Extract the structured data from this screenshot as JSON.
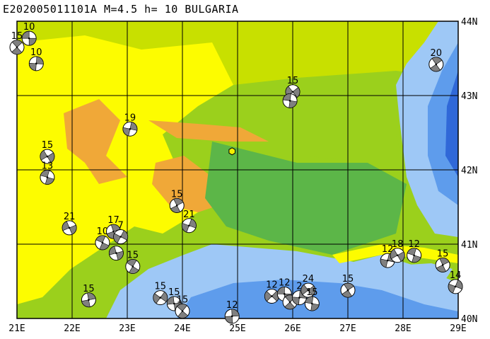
{
  "title": "E202005011101A  M=4.5  h= 10  BULGARIA",
  "extent": {
    "lon_min": 21,
    "lon_max": 29,
    "lat_min": 40,
    "lat_max": 44
  },
  "lon_labels": [
    "21E",
    "22E",
    "23E",
    "24E",
    "25E",
    "26E",
    "27E",
    "28E",
    "29E"
  ],
  "lat_labels": [
    "44N",
    "43N",
    "42N",
    "41N",
    "40N"
  ],
  "colors": {
    "lowland_green": "#9bd01c",
    "mid_green": "#5cb648",
    "yellow_green": "#c8e000",
    "yellow": "#fdfc00",
    "orange": "#f0a838",
    "sea_light": "#9ec8f6",
    "sea_mid": "#5e9cec",
    "sea_deep": "#3068d8",
    "grid": "#000000"
  },
  "epicenter": {
    "lon": 24.9,
    "lat": 42.25
  },
  "events": [
    {
      "label": "10",
      "lon": 21.22,
      "lat": 43.77
    },
    {
      "label": "15",
      "lon": 21.0,
      "lat": 43.65
    },
    {
      "label": "10",
      "lon": 21.35,
      "lat": 43.43
    },
    {
      "label": "15",
      "lon": 26.0,
      "lat": 43.05
    },
    {
      "label": "",
      "lon": 25.95,
      "lat": 42.93
    },
    {
      "label": "20",
      "lon": 28.6,
      "lat": 43.42
    },
    {
      "label": "19",
      "lon": 23.05,
      "lat": 42.55
    },
    {
      "label": "15",
      "lon": 21.55,
      "lat": 42.18
    },
    {
      "label": "13",
      "lon": 21.55,
      "lat": 41.9
    },
    {
      "label": "15",
      "lon": 23.9,
      "lat": 41.52
    },
    {
      "label": "21",
      "lon": 24.12,
      "lat": 41.25
    },
    {
      "label": "21",
      "lon": 21.95,
      "lat": 41.22
    },
    {
      "label": "10",
      "lon": 22.55,
      "lat": 41.02
    },
    {
      "label": "17",
      "lon": 22.75,
      "lat": 41.17
    },
    {
      "label": "7",
      "lon": 22.88,
      "lat": 41.1
    },
    {
      "label": "",
      "lon": 22.8,
      "lat": 40.88
    },
    {
      "label": "15",
      "lon": 23.1,
      "lat": 40.7
    },
    {
      "label": "15",
      "lon": 22.3,
      "lat": 40.25
    },
    {
      "label": "15",
      "lon": 23.6,
      "lat": 40.28
    },
    {
      "label": "15",
      "lon": 23.85,
      "lat": 40.2
    },
    {
      "label": "15",
      "lon": 24.0,
      "lat": 40.1
    },
    {
      "label": "12",
      "lon": 24.9,
      "lat": 40.03
    },
    {
      "label": "12",
      "lon": 25.62,
      "lat": 40.3
    },
    {
      "label": "12",
      "lon": 25.85,
      "lat": 40.33
    },
    {
      "label": "",
      "lon": 25.95,
      "lat": 40.22
    },
    {
      "label": "2",
      "lon": 26.12,
      "lat": 40.28
    },
    {
      "label": "24",
      "lon": 26.28,
      "lat": 40.38
    },
    {
      "label": "15",
      "lon": 26.35,
      "lat": 40.2
    },
    {
      "label": "15",
      "lon": 27.0,
      "lat": 40.38
    },
    {
      "label": "12",
      "lon": 27.72,
      "lat": 40.78
    },
    {
      "label": "18",
      "lon": 27.9,
      "lat": 40.85
    },
    {
      "label": "12",
      "lon": 28.2,
      "lat": 40.85
    },
    {
      "label": "15",
      "lon": 28.72,
      "lat": 40.72
    },
    {
      "label": "14",
      "lon": 28.95,
      "lat": 40.43
    }
  ]
}
